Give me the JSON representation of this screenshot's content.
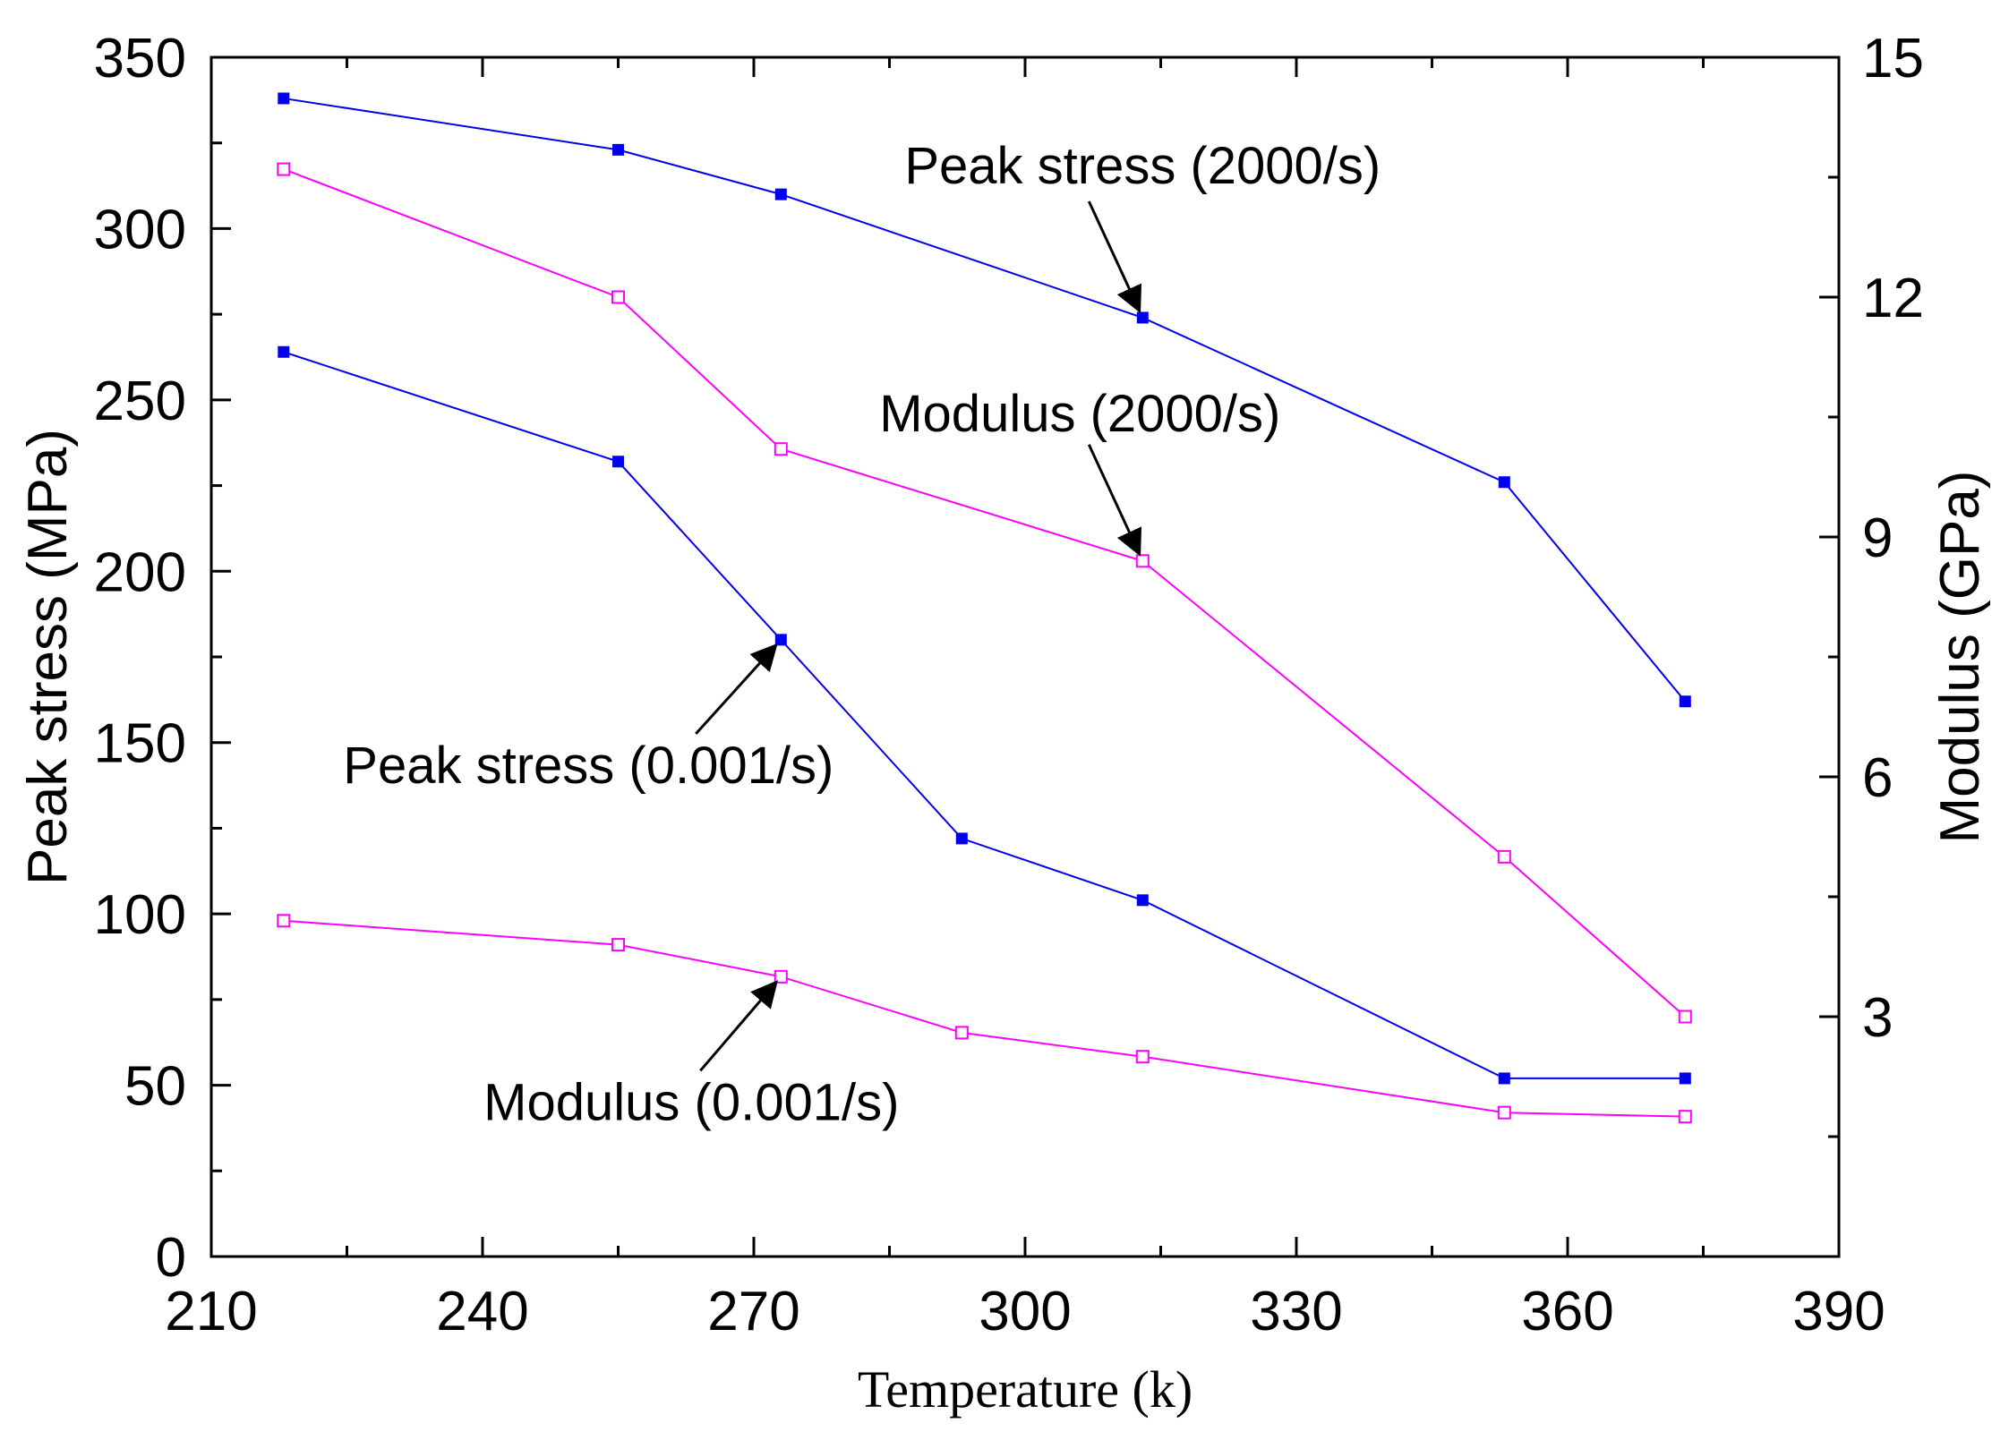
{
  "chart_data": {
    "type": "line",
    "title": "",
    "xlabel": "Temperature (k)",
    "ylabel": "Peak stress (MPa)",
    "y2label": "Modulus (GPa)",
    "xlim": [
      210,
      390
    ],
    "ylim": [
      0,
      350
    ],
    "y2lim": [
      0,
      15
    ],
    "xticks": [
      210,
      240,
      270,
      300,
      330,
      360,
      390
    ],
    "yticks": [
      0,
      50,
      100,
      150,
      200,
      250,
      300,
      350
    ],
    "y2ticks": [
      3,
      6,
      9,
      12,
      15
    ],
    "grid": false,
    "series": [
      {
        "name": "Peak stress (2000/s)",
        "axis": "left",
        "color": "#0000ee",
        "marker": "filled-square",
        "x": [
          218,
          255,
          273,
          313,
          353,
          373
        ],
        "values": [
          338,
          323,
          310,
          274,
          226,
          162
        ]
      },
      {
        "name": "Modulus (2000/s)",
        "axis": "right",
        "color": "#ff00ff",
        "marker": "open-square",
        "x": [
          218,
          255,
          273,
          313,
          353,
          373
        ],
        "values": [
          13.6,
          12.0,
          10.1,
          8.7,
          5.0,
          3.0
        ]
      },
      {
        "name": "Peak stress (0.001/s)",
        "axis": "left",
        "color": "#0000ee",
        "marker": "filled-square",
        "x": [
          218,
          255,
          273,
          293,
          313,
          353,
          373
        ],
        "values": [
          264,
          232,
          180,
          122,
          104,
          52,
          52
        ]
      },
      {
        "name": "Modulus (0.001/s)",
        "axis": "right",
        "color": "#ff00ff",
        "marker": "open-square",
        "x": [
          218,
          255,
          273,
          293,
          313,
          353,
          373
        ],
        "values": [
          4.2,
          3.9,
          3.5,
          2.8,
          2.5,
          1.8,
          1.75
        ]
      }
    ],
    "annotations": [
      {
        "text": "Peak stress (2000/s)",
        "x": 313,
        "y": 274,
        "axis": "left"
      },
      {
        "text": "Modulus (2000/s)",
        "x": 313,
        "y": 8.7,
        "axis": "right"
      },
      {
        "text": "Peak stress (0.001/s)",
        "x": 273,
        "y": 180,
        "axis": "left"
      },
      {
        "text": "Modulus (0.001/s)",
        "x": 273,
        "y": 3.5,
        "axis": "right"
      }
    ]
  }
}
